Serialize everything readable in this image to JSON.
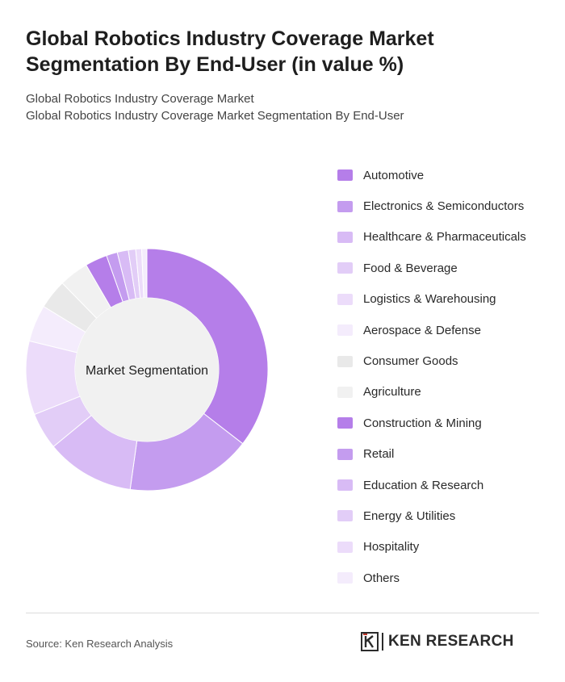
{
  "title": "Global Robotics Industry Coverage Market Segmentation By End-User (in value %)",
  "subtitle_1": "Global Robotics Industry Coverage Market",
  "subtitle_2": "Global Robotics Industry Coverage Market Segmentation By End-User",
  "source": "Source: Ken Research Analysis",
  "brand": {
    "name": "KEN RESEARCH",
    "logo_icon": "ken-research-k-logo-icon"
  },
  "chart_data": {
    "type": "pie",
    "style": "donut",
    "center_label": "Market Segmentation",
    "legend_position": "right",
    "slices": [
      {
        "label": "Automotive",
        "value": 36,
        "color": "#b57ee9"
      },
      {
        "label": "Electronics & Semiconductors",
        "value": 17,
        "color": "#c49cef"
      },
      {
        "label": "Healthcare & Pharmaceuticals",
        "value": 12,
        "color": "#d8bbf5"
      },
      {
        "label": "Food & Beverage",
        "value": 5,
        "color": "#e2cdf7"
      },
      {
        "label": "Logistics & Warehousing",
        "value": 10,
        "color": "#ecdcfa"
      },
      {
        "label": "Aerospace & Defense",
        "value": 5,
        "color": "#f4ecfc"
      },
      {
        "label": "Consumer Goods",
        "value": 4,
        "color": "#e9e9e9"
      },
      {
        "label": "Agriculture",
        "value": 4,
        "color": "#f1f1f1"
      },
      {
        "label": "Construction & Mining",
        "value": 3,
        "color": "#b57ee9"
      },
      {
        "label": "Retail",
        "value": 1.5,
        "color": "#c49cef"
      },
      {
        "label": "Education & Research",
        "value": 1.5,
        "color": "#d8bbf5"
      },
      {
        "label": "Energy & Utilities",
        "value": 1,
        "color": "#e2cdf7"
      },
      {
        "label": "Hospitality",
        "value": 0.8,
        "color": "#ecdcfa"
      },
      {
        "label": "Others",
        "value": 0.7,
        "color": "#f4ecfc"
      }
    ]
  }
}
